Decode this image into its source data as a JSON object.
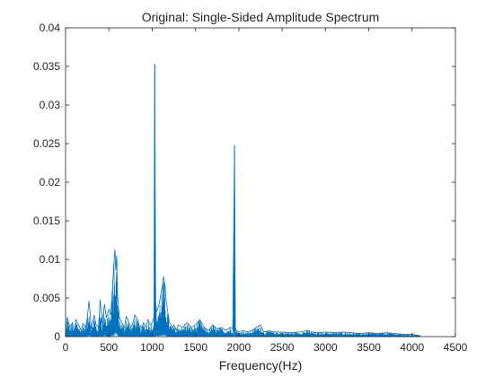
{
  "chart_data": {
    "type": "line",
    "title": "Original: Single-Sided Amplitude Spectrum",
    "xlabel": "Frequency(Hz)",
    "ylabel": "",
    "xlim": [
      0,
      4500
    ],
    "ylim": [
      0,
      0.04
    ],
    "xticks": [
      0,
      500,
      1000,
      1500,
      2000,
      2500,
      3000,
      3500,
      4000,
      4500
    ],
    "xtick_labels": [
      "0",
      "500",
      "1000",
      "1500",
      "2000",
      "2500",
      "3000",
      "3500",
      "4000",
      "4500"
    ],
    "yticks": [
      0,
      0.005,
      0.01,
      0.015,
      0.02,
      0.025,
      0.03,
      0.035,
      0.04
    ],
    "ytick_labels": [
      "0",
      "0.005",
      "0.01",
      "0.015",
      "0.02",
      "0.025",
      "0.03",
      "0.035",
      "0.04"
    ],
    "grid": false,
    "line_color": "#0072BD",
    "series": [
      {
        "x": [
          0,
          20,
          50,
          80,
          100,
          120,
          150,
          180,
          200,
          230,
          250,
          270,
          300,
          330,
          350,
          380,
          400,
          420,
          450,
          470,
          500,
          520,
          540,
          560,
          570,
          580,
          590,
          600,
          620,
          650,
          680,
          700,
          720,
          750,
          780,
          800,
          830,
          850,
          880,
          900,
          930,
          950,
          980,
          1000,
          1020,
          1030,
          1040,
          1050,
          1060,
          1080,
          1100,
          1120,
          1130,
          1140,
          1150,
          1160,
          1180,
          1200,
          1230,
          1250,
          1280,
          1300,
          1350,
          1400,
          1450,
          1500,
          1550,
          1600,
          1650,
          1700,
          1750,
          1800,
          1850,
          1900,
          1930,
          1950,
          1960,
          1970,
          2000,
          2050,
          2100,
          2150,
          2200,
          2250,
          2280,
          2300,
          2350,
          2400,
          2500,
          2600,
          2700,
          2800,
          2850,
          2900,
          3000,
          3100,
          3200,
          3300,
          3400,
          3500,
          3600,
          3700,
          3800,
          3900,
          4000,
          4050,
          4100
        ],
        "y": [
          0.0008,
          0.0025,
          0.0012,
          0.0018,
          0.0006,
          0.0022,
          0.0015,
          0.0008,
          0.0017,
          0.0012,
          0.0024,
          0.0046,
          0.001,
          0.0028,
          0.0016,
          0.0012,
          0.0048,
          0.0018,
          0.0042,
          0.0024,
          0.0035,
          0.0028,
          0.006,
          0.0098,
          0.0113,
          0.0085,
          0.0105,
          0.0055,
          0.0025,
          0.0018,
          0.0012,
          0.0026,
          0.0022,
          0.0012,
          0.0018,
          0.0028,
          0.0022,
          0.0015,
          0.0012,
          0.0018,
          0.0012,
          0.0022,
          0.0015,
          0.0018,
          0.0025,
          0.0353,
          0.0045,
          0.0032,
          0.0035,
          0.0042,
          0.0055,
          0.0068,
          0.0078,
          0.0072,
          0.0065,
          0.0048,
          0.0032,
          0.0018,
          0.0012,
          0.0015,
          0.0008,
          0.0015,
          0.0012,
          0.0018,
          0.0012,
          0.0015,
          0.0022,
          0.0012,
          0.0008,
          0.0015,
          0.001,
          0.0012,
          0.0008,
          0.0012,
          0.001,
          0.0248,
          0.0012,
          0.0008,
          0.0006,
          0.0008,
          0.0006,
          0.0008,
          0.0012,
          0.0015,
          0.0008,
          0.0006,
          0.0008,
          0.0006,
          0.0006,
          0.0005,
          0.0006,
          0.0008,
          0.0006,
          0.0005,
          0.0006,
          0.0005,
          0.0006,
          0.0005,
          0.0004,
          0.0005,
          0.0004,
          0.0005,
          0.0004,
          0.0003,
          0.0003,
          0.0002,
          0.0001
        ]
      }
    ]
  }
}
